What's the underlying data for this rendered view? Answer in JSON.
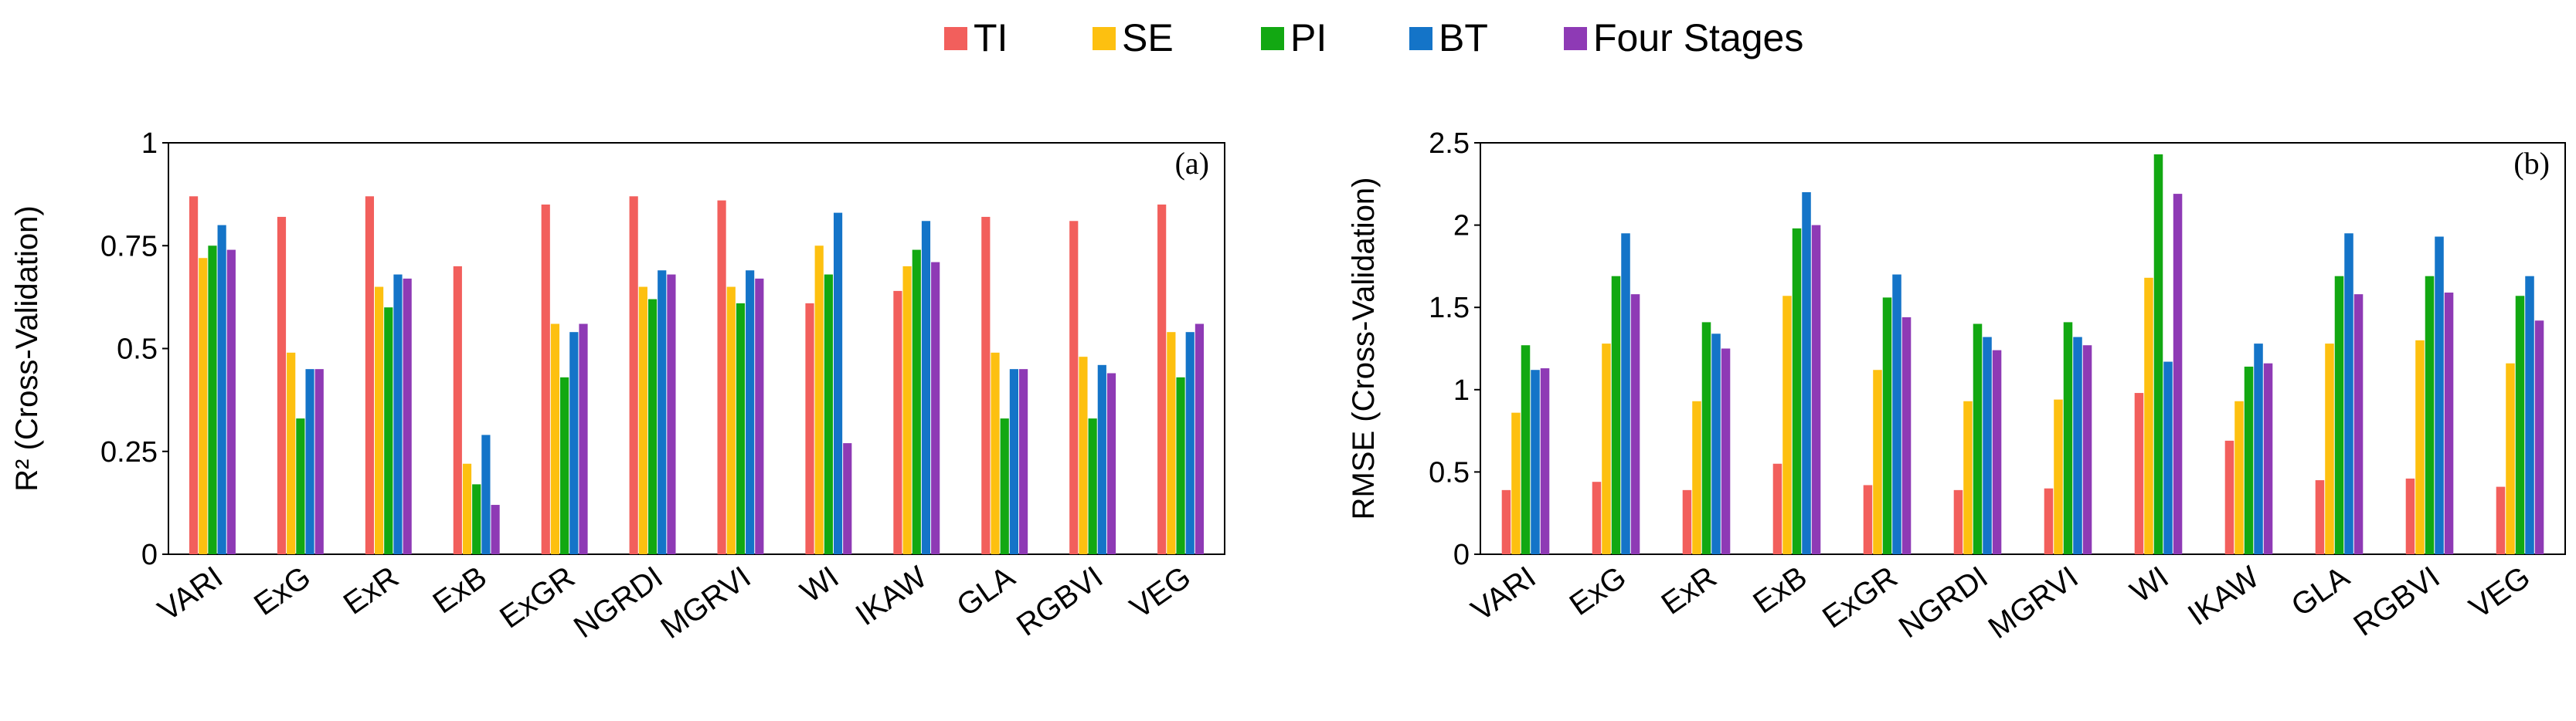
{
  "legend": [
    {
      "name": "TI",
      "color": "#f25f5c"
    },
    {
      "name": "SE",
      "color": "#fdc010"
    },
    {
      "name": "PI",
      "color": "#12a812"
    },
    {
      "name": "BT",
      "color": "#1474c8"
    },
    {
      "name": "Four Stages",
      "color": "#8e3ab5"
    }
  ],
  "chart_data": [
    {
      "type": "bar",
      "panel_label": "(a)",
      "ylabel": "R² (Cross-Validation)",
      "ylim": [
        0,
        1
      ],
      "yticks": [
        0,
        0.25,
        0.5,
        0.75,
        1
      ],
      "ytick_labels": [
        "0",
        "0.25",
        "0.5",
        "0.75",
        "1"
      ],
      "categories": [
        "VARI",
        "ExG",
        "ExR",
        "ExB",
        "ExGR",
        "NGRDI",
        "MGRVI",
        "WI",
        "IKAW",
        "GLA",
        "RGBVI",
        "VEG"
      ],
      "series": [
        {
          "name": "TI",
          "values": [
            0.87,
            0.82,
            0.87,
            0.7,
            0.85,
            0.87,
            0.86,
            0.61,
            0.64,
            0.82,
            0.81,
            0.85
          ]
        },
        {
          "name": "SE",
          "values": [
            0.72,
            0.49,
            0.65,
            0.22,
            0.56,
            0.65,
            0.65,
            0.75,
            0.7,
            0.49,
            0.48,
            0.54
          ]
        },
        {
          "name": "PI",
          "values": [
            0.75,
            0.33,
            0.6,
            0.17,
            0.43,
            0.62,
            0.61,
            0.68,
            0.74,
            0.33,
            0.33,
            0.43
          ]
        },
        {
          "name": "BT",
          "values": [
            0.8,
            0.45,
            0.68,
            0.29,
            0.54,
            0.69,
            0.69,
            0.83,
            0.81,
            0.45,
            0.46,
            0.54
          ]
        },
        {
          "name": "Four Stages",
          "values": [
            0.74,
            0.45,
            0.67,
            0.12,
            0.56,
            0.68,
            0.67,
            0.27,
            0.71,
            0.45,
            0.44,
            0.56
          ]
        }
      ]
    },
    {
      "type": "bar",
      "panel_label": "(b)",
      "ylabel": "RMSE (Cross-Validation)",
      "ylim": [
        0,
        2.5
      ],
      "yticks": [
        0,
        0.5,
        1,
        1.5,
        2,
        2.5
      ],
      "ytick_labels": [
        "0",
        "0.5",
        "1",
        "1.5",
        "2",
        "2.5"
      ],
      "categories": [
        "VARI",
        "ExG",
        "ExR",
        "ExB",
        "ExGR",
        "NGRDI",
        "MGRVI",
        "WI",
        "IKAW",
        "GLA",
        "RGBVI",
        "VEG"
      ],
      "series": [
        {
          "name": "TI",
          "values": [
            0.39,
            0.44,
            0.39,
            0.55,
            0.42,
            0.39,
            0.4,
            0.98,
            0.69,
            0.45,
            0.46,
            0.41
          ]
        },
        {
          "name": "SE",
          "values": [
            0.86,
            1.28,
            0.93,
            1.57,
            1.12,
            0.93,
            0.94,
            1.68,
            0.93,
            1.28,
            1.3,
            1.16
          ]
        },
        {
          "name": "PI",
          "values": [
            1.27,
            1.69,
            1.41,
            1.98,
            1.56,
            1.4,
            1.41,
            2.43,
            1.14,
            1.69,
            1.69,
            1.57
          ]
        },
        {
          "name": "BT",
          "values": [
            1.12,
            1.95,
            1.34,
            2.2,
            1.7,
            1.32,
            1.32,
            1.17,
            1.28,
            1.95,
            1.93,
            1.69
          ]
        },
        {
          "name": "Four Stages",
          "values": [
            1.13,
            1.58,
            1.25,
            2.0,
            1.44,
            1.24,
            1.27,
            2.19,
            1.16,
            1.58,
            1.59,
            1.42
          ]
        }
      ]
    }
  ]
}
